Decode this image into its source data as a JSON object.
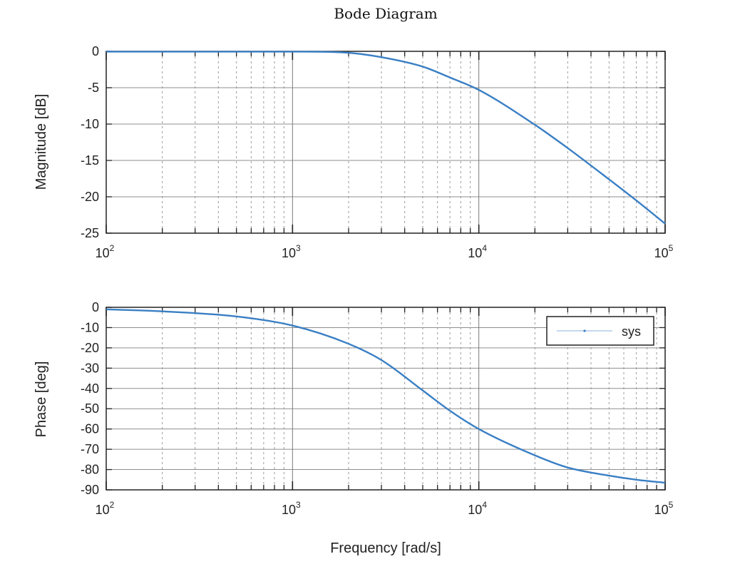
{
  "chart_data": [
    {
      "type": "line",
      "panel": "magnitude",
      "title": "Bode Diagram",
      "xlabel": "",
      "ylabel": "Magnitude [dB]",
      "xscale": "log",
      "xlim": [
        100,
        100000
      ],
      "ylim": [
        -25,
        0
      ],
      "yticks": [
        0,
        -5,
        -10,
        -15,
        -20,
        -25
      ],
      "xticks": [
        100,
        1000,
        10000,
        100000
      ],
      "xtick_labels": [
        {
          "base": "10",
          "exp": "2"
        },
        {
          "base": "10",
          "exp": "3"
        },
        {
          "base": "10",
          "exp": "4"
        },
        {
          "base": "10",
          "exp": "5"
        }
      ],
      "grid": true,
      "line_color": "#3a7fc4",
      "series": [
        {
          "name": "",
          "x": [
            100,
            200,
            500,
            1000,
            2000,
            3000,
            5000,
            7000,
            10000,
            20000,
            30000,
            50000,
            70000,
            100000
          ],
          "y": [
            -0.04,
            -0.04,
            -0.04,
            -0.04,
            -0.2,
            -0.8,
            -2.1,
            -3.6,
            -5.3,
            -10.1,
            -13.3,
            -17.6,
            -20.5,
            -23.7
          ]
        }
      ]
    },
    {
      "type": "line",
      "panel": "phase",
      "title": "",
      "xlabel": "Frequency [rad/s]",
      "ylabel": "Phase [deg]",
      "xscale": "log",
      "xlim": [
        100,
        100000
      ],
      "ylim": [
        -90,
        0
      ],
      "yticks": [
        0,
        -10,
        -20,
        -30,
        -40,
        -50,
        -60,
        -70,
        -80,
        -90
      ],
      "xticks": [
        100,
        1000,
        10000,
        100000
      ],
      "xtick_labels": [
        {
          "base": "10",
          "exp": "2"
        },
        {
          "base": "10",
          "exp": "3"
        },
        {
          "base": "10",
          "exp": "4"
        },
        {
          "base": "10",
          "exp": "5"
        }
      ],
      "grid": true,
      "legend": {
        "position": "top-right",
        "entries": [
          "sys"
        ]
      },
      "line_color": "#3a7fc4",
      "series": [
        {
          "name": "sys",
          "x": [
            100,
            200,
            500,
            1000,
            2000,
            3000,
            5000,
            7000,
            10000,
            20000,
            30000,
            50000,
            70000,
            100000
          ],
          "y": [
            -1,
            -2,
            -4.5,
            -9,
            -18,
            -26,
            -41,
            -51,
            -60,
            -73,
            -79,
            -83,
            -85,
            -86.5
          ]
        }
      ]
    }
  ]
}
